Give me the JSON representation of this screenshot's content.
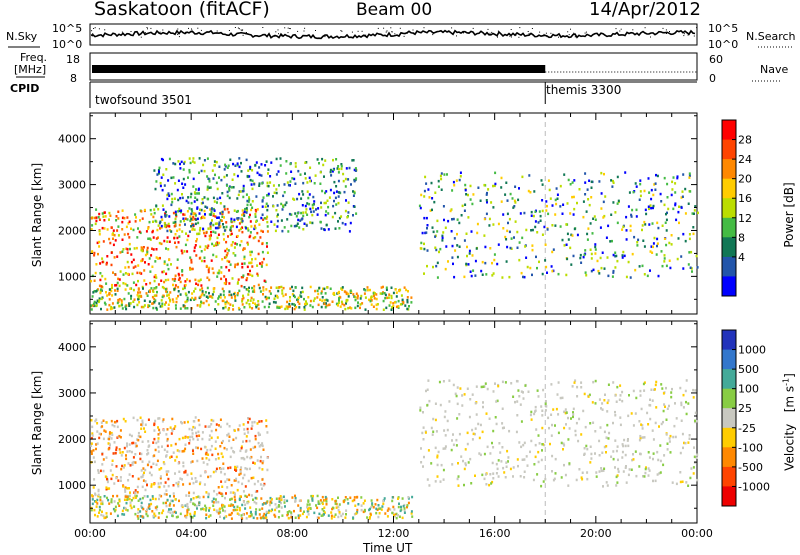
{
  "header": {
    "station": "Saskatoon (fitACF)",
    "beam": "Beam 00",
    "date": "14/Apr/2012"
  },
  "top_panels": {
    "nsky_label": "N.Sky",
    "nsky_ticks": [
      "10^5",
      "10^0"
    ],
    "nsearch_label": "N.Search",
    "nsearch_ticks": [
      "10^5",
      "10^0"
    ],
    "freq_label_1": "Freq.",
    "freq_label_2": "[MHz]",
    "freq_ticks": [
      "18",
      "8"
    ],
    "nave_label": "Nave",
    "nave_ticks": [
      "60",
      "0"
    ],
    "cpid_label": "CPID",
    "cpid_programs": [
      {
        "name": "twofsound 3501",
        "start_hour": 0
      },
      {
        "name": "themis 3300",
        "start_hour": 18
      }
    ]
  },
  "chart_data": [
    {
      "type": "heatmap",
      "name": "power-panel",
      "ylabel": "Slant Range [km]",
      "xlabel": "",
      "x_range_hours": [
        0,
        24
      ],
      "ylim": [
        180,
        4560
      ],
      "y_ticks": [
        "1000",
        "2000",
        "3000",
        "4000"
      ],
      "colorbar": {
        "label": "Power [dB]",
        "ticks": [
          "28",
          "24",
          "20",
          "16",
          "12",
          "8",
          "4"
        ],
        "colors": [
          "#ff0000",
          "#ff4400",
          "#ff8800",
          "#ffcc00",
          "#bbdd00",
          "#44bb44",
          "#117755",
          "#2255aa",
          "#0000ff"
        ]
      },
      "scatter_regions": [
        {
          "description": "near-range band",
          "hours": [
            0,
            12.7
          ],
          "range_km": [
            300,
            800
          ],
          "dominant": "green-yellow"
        },
        {
          "description": "morning arc",
          "hours": [
            0,
            7
          ],
          "range_km": [
            800,
            2500
          ],
          "dominant": "red-orange"
        },
        {
          "description": "morning high arc",
          "hours": [
            2.5,
            10.5
          ],
          "range_km": [
            2000,
            3600
          ],
          "dominant": "blue-green"
        },
        {
          "description": "afternoon bands",
          "hours": [
            13,
            24
          ],
          "range_km": [
            1000,
            3300
          ],
          "dominant": "green-blue"
        }
      ]
    },
    {
      "type": "heatmap",
      "name": "velocity-panel",
      "ylabel": "Slant Range [km]",
      "xlabel": "Time UT",
      "x_ticks": [
        "00:00",
        "04:00",
        "08:00",
        "12:00",
        "16:00",
        "20:00",
        "00:00"
      ],
      "x_range_hours": [
        0,
        24
      ],
      "ylim": [
        180,
        4560
      ],
      "y_ticks": [
        "1000",
        "2000",
        "3000",
        "4000"
      ],
      "colorbar": {
        "label_main": "Velocity",
        "label_units": "[m s",
        "label_exp": "-1",
        "label_close": "]",
        "ticks": [
          "1000",
          "500",
          "100",
          "25",
          "-25",
          "-100",
          "-500",
          "-1000"
        ],
        "colors": [
          "#2233bb",
          "#3377cc",
          "#44aa99",
          "#88cc44",
          "#c8c8c0",
          "#ffcc00",
          "#ff8800",
          "#ff4400",
          "#ee0000"
        ]
      },
      "scatter_regions": [
        {
          "description": "near-range band",
          "hours": [
            0,
            12.7
          ],
          "range_km": [
            300,
            800
          ],
          "dominant": "orange-green"
        },
        {
          "description": "morning arc",
          "hours": [
            0,
            7
          ],
          "range_km": [
            800,
            2500
          ],
          "dominant": "grey-orange"
        },
        {
          "description": "afternoon bands",
          "hours": [
            13,
            24
          ],
          "range_km": [
            1000,
            3300
          ],
          "dominant": "grey"
        }
      ]
    }
  ],
  "dashed_line_hour": 18
}
